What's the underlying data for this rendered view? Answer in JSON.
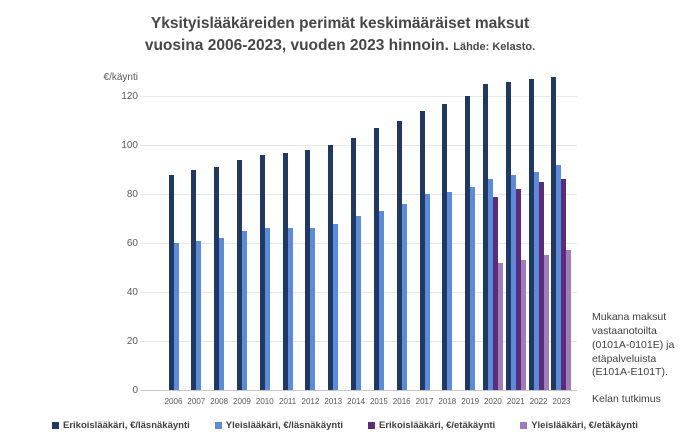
{
  "title": {
    "line1": "Yksityislääkäreiden perimät keskimääräiset maksut",
    "line2": "vuosina 2006-2023, vuoden 2023 hinnoin.",
    "source": "Lähde: Kelasto."
  },
  "y_axis": {
    "unit_label": "€/käynti",
    "ticks": [
      0,
      20,
      40,
      60,
      80,
      100,
      120
    ]
  },
  "notes": {
    "inclusion": "Mukana maksut vastaanotoilta (0101A-0101E) ja etäpalveluista (E101A-E101T).",
    "attribution": "Kelan tutkimus"
  },
  "colors": {
    "navy": "#1F3864",
    "blue": "#5B8CD9",
    "dark_purple": "#5D2B79",
    "light_purple": "#9F7DBB",
    "grid": "#E8E8E8",
    "axis_line": "#C9C9C9"
  },
  "chart_data": {
    "type": "bar",
    "title": "Yksityislääkäreiden perimät keskimääräiset maksut vuosina 2006-2023, vuoden 2023 hinnoin. Lähde: Kelasto.",
    "ylabel": "€/käynti",
    "ylim": [
      0,
      130
    ],
    "grid": true,
    "legend_position": "bottom",
    "categories": [
      "2006",
      "2007",
      "2008",
      "2009",
      "2010",
      "2011",
      "2012",
      "2013",
      "2014",
      "2015",
      "2016",
      "2017",
      "2018",
      "2019",
      "2020",
      "2021",
      "2022",
      "2023"
    ],
    "series": [
      {
        "name": "Erikoislääkäri, €/läsnäkäynti",
        "color_key": "navy",
        "values": [
          88,
          90,
          91,
          94,
          96,
          97,
          98,
          100,
          103,
          107,
          110,
          114,
          117,
          120,
          125,
          126,
          127,
          128
        ]
      },
      {
        "name": "Yleislääkäri, €/läsnäkäynti",
        "color_key": "blue",
        "values": [
          60,
          61,
          62,
          65,
          66,
          66,
          66,
          68,
          71,
          73,
          76,
          80,
          81,
          83,
          86,
          88,
          89,
          92
        ]
      },
      {
        "name": "Erikoislääkäri, €/etäkäynti",
        "color_key": "dark_purple",
        "values": [
          null,
          null,
          null,
          null,
          null,
          null,
          null,
          null,
          null,
          null,
          null,
          null,
          null,
          null,
          79,
          82,
          85,
          86
        ]
      },
      {
        "name": "Yleislääkäri, €/etäkäynti",
        "color_key": "light_purple",
        "values": [
          null,
          null,
          null,
          null,
          null,
          null,
          null,
          null,
          null,
          null,
          null,
          null,
          null,
          null,
          52,
          53,
          55,
          57
        ]
      }
    ]
  }
}
